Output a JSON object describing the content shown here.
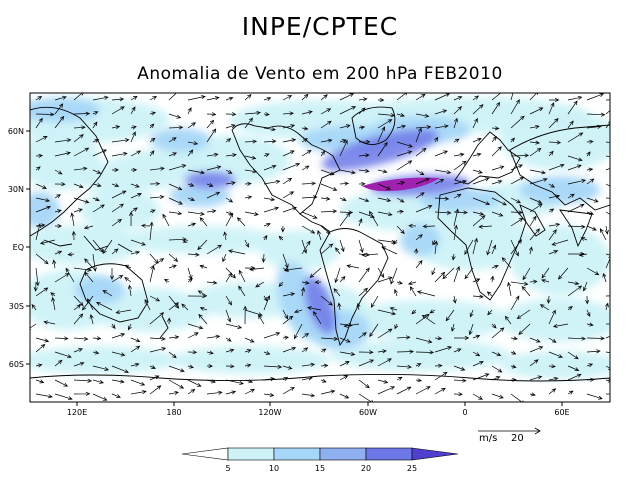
{
  "header": {
    "title": "INPE/CPTEC",
    "subtitle": "Anomalia de Vento em 200 hPa FEB2010"
  },
  "axes": {
    "lat_labels": [
      "60N",
      "30N",
      "EQ",
      "30S",
      "60S"
    ],
    "lon_labels": [
      "120E",
      "180",
      "120W",
      "60W",
      "0",
      "60E"
    ]
  },
  "colorbar": {
    "levels": [
      "5",
      "10",
      "15",
      "20",
      "25"
    ],
    "colors": [
      "#ffffff",
      "#cef2f8",
      "#a6d6f8",
      "#8fb0f0",
      "#6c78e8",
      "#5040d0",
      "#a020b0"
    ]
  },
  "reference_vector": {
    "unit": "m/s",
    "value": "20"
  },
  "map_colors": {
    "coast": "#000000",
    "vector": "#000000",
    "shading_light": "#cef2f8",
    "shading_mid": "#a6d6f8",
    "shading_strong": "#6c78e8",
    "shading_max": "#a020b0"
  }
}
